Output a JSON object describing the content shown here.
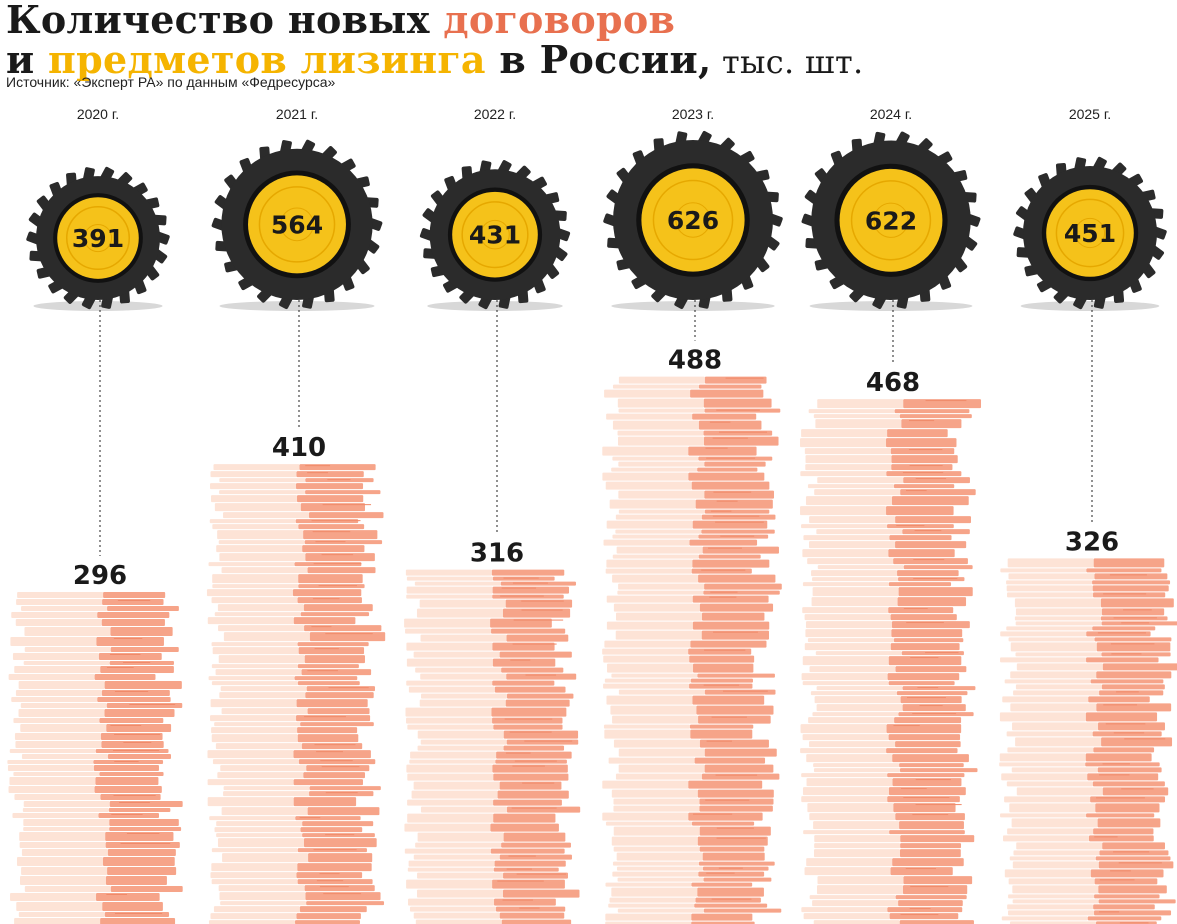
{
  "title": {
    "part1": "Количество новых ",
    "part2": "договоров",
    "part3": "и ",
    "part4": "предметов лизинга",
    "part5": " в России,",
    "unit": " тыс. шт."
  },
  "source": "Источник: «Эксперт РА» по данным «Федресурса»",
  "colors": {
    "contracts": "#e8704f",
    "items": "#f5b400",
    "tire": "#2b2b2b",
    "rim": "#f5c21a",
    "stack_light": "#fde3d6",
    "stack_dark": "#f6a489"
  },
  "chart_data": {
    "type": "bar",
    "categories": [
      "2020 г.",
      "2021 г.",
      "2022 г.",
      "2023 г.",
      "2024 г.",
      "2025 г."
    ],
    "series": [
      {
        "name": "договоров",
        "values": [
          296,
          410,
          316,
          488,
          468,
          326
        ]
      },
      {
        "name": "предметов лизинга",
        "values": [
          391,
          564,
          431,
          626,
          622,
          451
        ]
      }
    ],
    "unit": "тыс. шт.",
    "grid": false,
    "legend": "none"
  }
}
